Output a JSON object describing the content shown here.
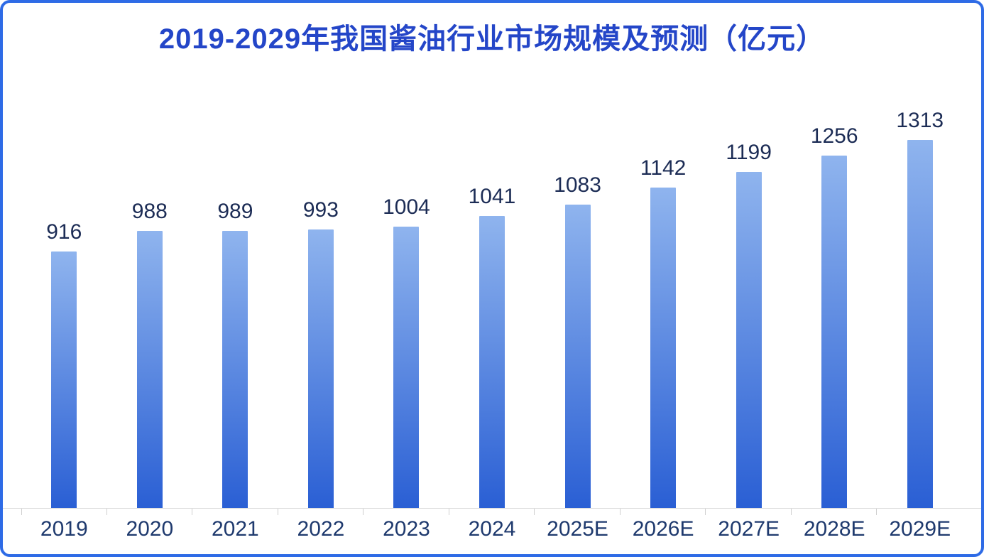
{
  "chart_data": {
    "type": "bar",
    "title": "2019-2029年我国酱油行业市场规模及预测（亿元）",
    "categories": [
      "2019",
      "2020",
      "2021",
      "2022",
      "2023",
      "2024",
      "2025E",
      "2026E",
      "2027E",
      "2028E",
      "2029E"
    ],
    "values": [
      916,
      988,
      989,
      993,
      1004,
      1041,
      1083,
      1142,
      1199,
      1256,
      1313
    ],
    "xlabel": "",
    "ylabel": "",
    "ylim": [
      0,
      1400
    ],
    "grid": false,
    "legend": false,
    "value_labels_shown": true,
    "colors": {
      "border": "#2E6BE6",
      "title": "#2446C8",
      "value_label": "#1C2C55",
      "axis_label": "#1F3A6E",
      "bar_gradient_top": "#8FB4EE",
      "bar_gradient_bottom": "#2A5FD4",
      "axis_line": "#DCDCDC"
    }
  }
}
